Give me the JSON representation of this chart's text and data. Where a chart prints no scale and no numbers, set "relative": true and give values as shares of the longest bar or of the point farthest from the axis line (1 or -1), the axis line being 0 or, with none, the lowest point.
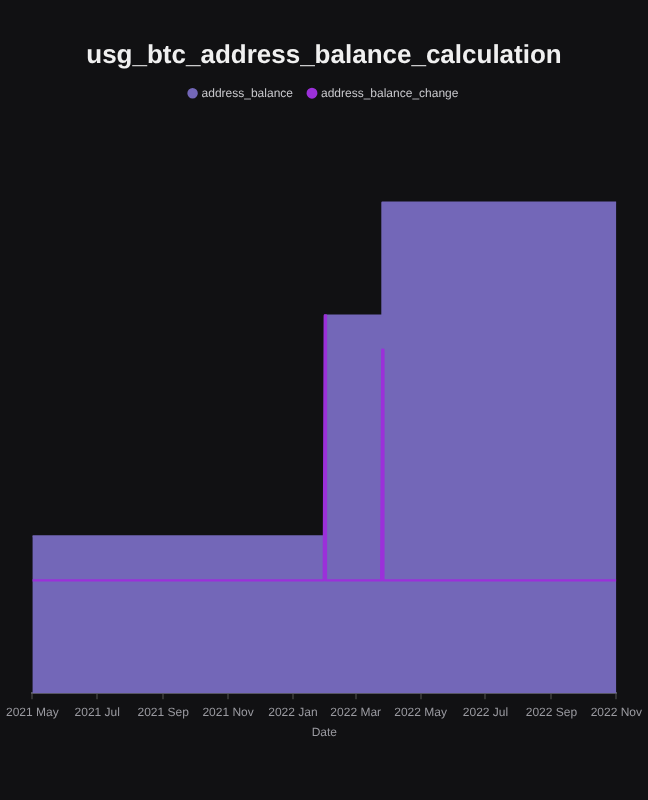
{
  "chart_data": {
    "type": "area",
    "title": "usg_btc_address_balance_calculation",
    "xlabel": "Date",
    "relative": true,
    "legend": "top",
    "xlim": [
      "2021-05-01",
      "2022-11-01"
    ],
    "xticks": [
      {
        "value": "2021-05-01",
        "label": "2021 May"
      },
      {
        "value": "2021-07-01",
        "label": "2021 Jul"
      },
      {
        "value": "2021-09-01",
        "label": "2021 Sep"
      },
      {
        "value": "2021-11-01",
        "label": "2021 Nov"
      },
      {
        "value": "2022-01-01",
        "label": "2022 Jan"
      },
      {
        "value": "2022-03-01",
        "label": "2022 Mar"
      },
      {
        "value": "2022-05-01",
        "label": "2022 May"
      },
      {
        "value": "2022-07-01",
        "label": "2022 Jul"
      },
      {
        "value": "2022-09-01",
        "label": "2022 Sep"
      },
      {
        "value": "2022-11-01",
        "label": "2022 Nov"
      }
    ],
    "series": [
      {
        "name": "address_balance",
        "color": "#7367b8",
        "x": [
          "2021-05-01",
          "2022-01-31",
          "2022-01-31",
          "2022-03-26",
          "2022-03-26",
          "2022-11-01"
        ],
        "values": [
          0.32,
          0.32,
          0.77,
          0.77,
          1,
          1
        ]
      },
      {
        "name": "address_balance_change",
        "type": "line",
        "color": "#9b30d9",
        "x": [
          "2021-05-01",
          "2022-01-30",
          "2022-01-31",
          "2022-02-01",
          "2022-03-25",
          "2022-03-26",
          "2022-03-27",
          "2022-11-01"
        ],
        "values": [
          0.23,
          0.23,
          0.77,
          0.23,
          0.23,
          0.7,
          0.23,
          0.23
        ]
      }
    ]
  }
}
